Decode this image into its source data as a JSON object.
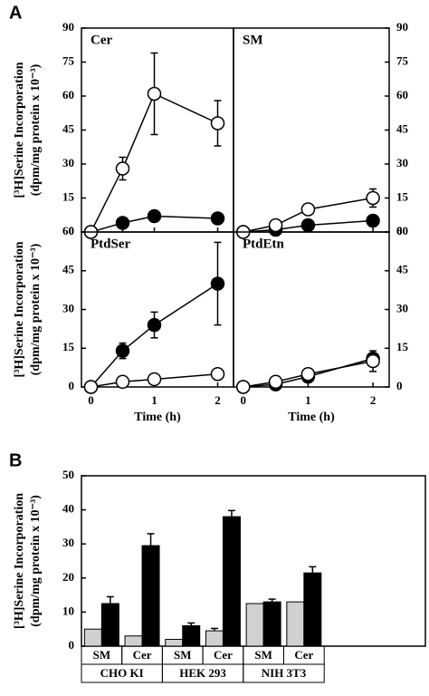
{
  "chart_data": [
    {
      "type": "line",
      "panel": "A",
      "title": "Cer",
      "ylabel": [
        "[³H]Serine Incorporation",
        "(dpm/mg protein x 10⁻³)"
      ],
      "yaxis_side": "left",
      "x": [
        0,
        0.5,
        1,
        2
      ],
      "xlim": [
        -0.15,
        2.25
      ],
      "ylim": [
        0,
        90
      ],
      "yticks": [
        0,
        15,
        30,
        45,
        60,
        75,
        90
      ],
      "series": [
        {
          "marker": "filled",
          "color": "#000000",
          "values": [
            0,
            4,
            7,
            6
          ],
          "errors": [
            null,
            null,
            null,
            null
          ]
        },
        {
          "marker": "open",
          "color": "#000000",
          "values": [
            0,
            28,
            61,
            48
          ],
          "errors": [
            null,
            5,
            18,
            10
          ]
        }
      ]
    },
    {
      "type": "line",
      "title": "SM",
      "yaxis_side": "right",
      "x": [
        0,
        0.5,
        1,
        2
      ],
      "xlim": [
        -0.15,
        2.25
      ],
      "ylim": [
        0,
        90
      ],
      "yticks": [
        0,
        15,
        30,
        45,
        60,
        75,
        90
      ],
      "series": [
        {
          "marker": "filled",
          "color": "#000000",
          "values": [
            0,
            1,
            3,
            5
          ],
          "errors": [
            null,
            null,
            null,
            null
          ]
        },
        {
          "marker": "open",
          "color": "#000000",
          "values": [
            0,
            3,
            10,
            15
          ],
          "errors": [
            null,
            null,
            null,
            4
          ]
        }
      ]
    },
    {
      "type": "line",
      "title": "PtdSer",
      "ylabel": [
        "[³H]Serine Incorporation",
        "(dpm/mg protein x 10⁻³)"
      ],
      "yaxis_side": "left",
      "xlabel": "Time (h)",
      "x": [
        0,
        0.5,
        1,
        2
      ],
      "xlim": [
        -0.15,
        2.25
      ],
      "xticks": [
        0,
        1,
        2
      ],
      "ylim": [
        0,
        60
      ],
      "yticks": [
        0,
        15,
        30,
        45,
        60
      ],
      "series": [
        {
          "marker": "filled",
          "color": "#000000",
          "values": [
            0,
            14,
            24,
            40
          ],
          "errors": [
            null,
            3,
            5,
            16
          ]
        },
        {
          "marker": "open",
          "color": "#000000",
          "values": [
            0,
            2,
            3,
            5
          ],
          "errors": [
            null,
            null,
            null,
            null
          ]
        }
      ]
    },
    {
      "type": "line",
      "title": "PtdEtn",
      "yaxis_side": "right",
      "xlabel": "Time (h)",
      "x": [
        0,
        0.5,
        1,
        2
      ],
      "xlim": [
        -0.15,
        2.25
      ],
      "xticks": [
        0,
        1,
        2
      ],
      "ylim": [
        0,
        60
      ],
      "yticks": [
        0,
        15,
        30,
        45,
        60
      ],
      "series": [
        {
          "marker": "filled",
          "color": "#000000",
          "values": [
            0,
            1,
            4,
            11
          ],
          "errors": [
            null,
            null,
            null,
            null
          ]
        },
        {
          "marker": "open",
          "color": "#000000",
          "values": [
            0,
            2,
            5,
            10
          ],
          "errors": [
            null,
            null,
            null,
            4
          ]
        }
      ]
    },
    {
      "type": "bar",
      "panel": "B",
      "ylabel": [
        "[³H]Serine Incorporation",
        "(dpm/mg protein x 10⁻³)"
      ],
      "categories": [
        "SM",
        "Cer",
        "SM",
        "Cer",
        "SM",
        "Cer"
      ],
      "groups": [
        "CHO KI",
        "HEK 293",
        "NIH 3T3"
      ],
      "ylim": [
        0,
        50
      ],
      "yticks": [
        0,
        10,
        20,
        30,
        40,
        50
      ],
      "series": [
        {
          "color": "#d0d0d0",
          "values": [
            5,
            3,
            2,
            4.5,
            12.5,
            13
          ],
          "errors": [
            null,
            null,
            null,
            0.7,
            null,
            null
          ]
        },
        {
          "color": "#000000",
          "values": [
            12.5,
            29.5,
            6,
            38,
            13,
            21.5
          ],
          "errors": [
            2,
            3.5,
            0.8,
            1.8,
            0.8,
            1.8
          ]
        }
      ]
    }
  ]
}
